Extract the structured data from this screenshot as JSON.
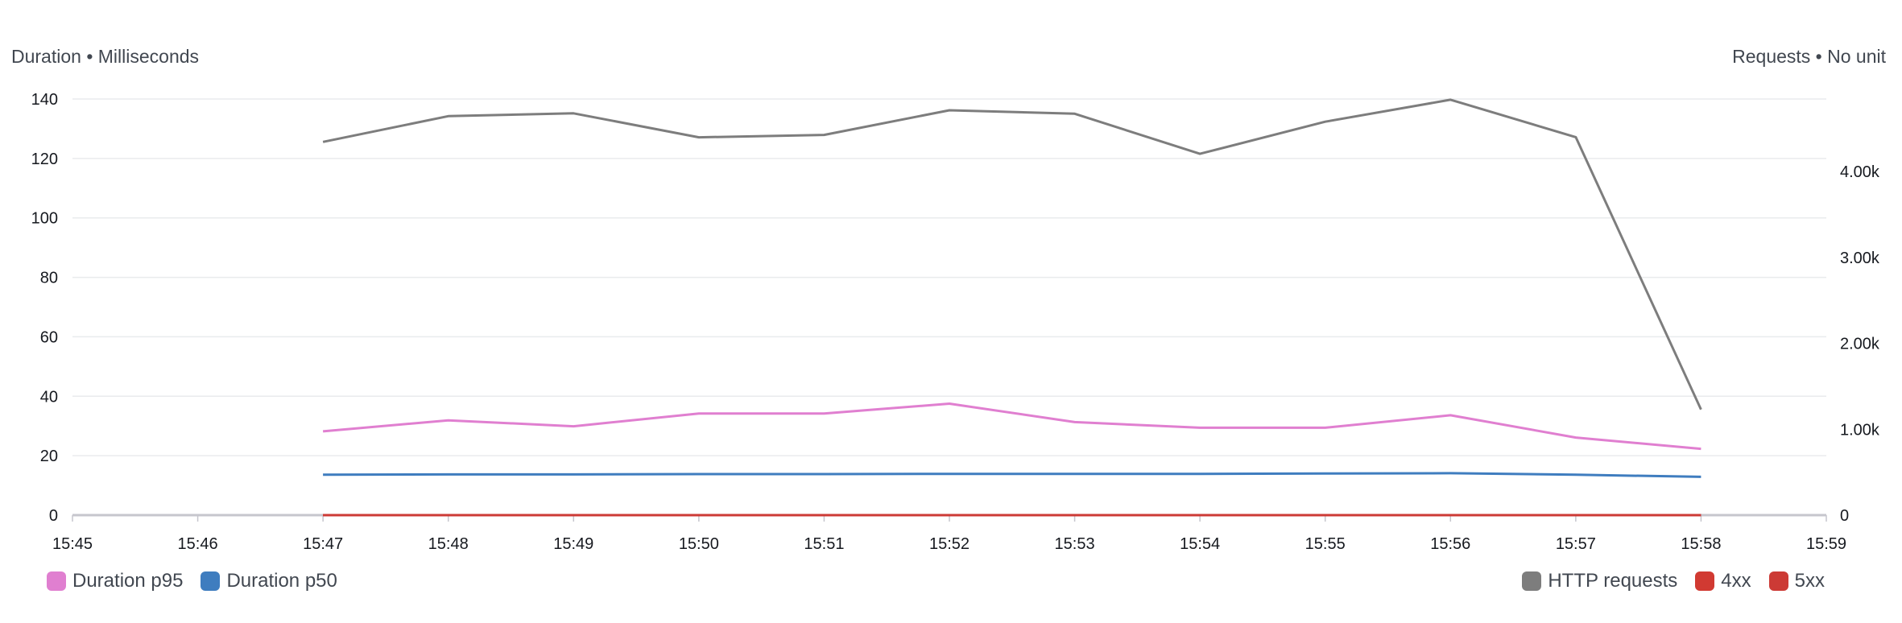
{
  "chart_data": {
    "type": "line",
    "left_axis_title": "Duration • Milliseconds",
    "right_axis_title": "Requests • No unit",
    "x_ticks": [
      "15:45",
      "15:46",
      "15:47",
      "15:48",
      "15:49",
      "15:50",
      "15:51",
      "15:52",
      "15:53",
      "15:54",
      "15:55",
      "15:56",
      "15:57",
      "15:58",
      "15:59"
    ],
    "y_left": {
      "range": [
        0,
        140
      ],
      "ticks": [
        0,
        20,
        40,
        60,
        80,
        100,
        120,
        140
      ],
      "tick_labels": [
        "0",
        "20",
        "40",
        "60",
        "80",
        "100",
        "120",
        "140"
      ]
    },
    "y_right": {
      "range": [
        0,
        4844
      ],
      "ticks": [
        0,
        1000,
        2000,
        3000,
        4000
      ],
      "tick_labels": [
        "0",
        "1.00k",
        "2.00k",
        "3.00k",
        "4.00k"
      ]
    },
    "grid": true,
    "x": [
      "15:47",
      "15:48",
      "15:49",
      "15:50",
      "15:51",
      "15:52",
      "15:53",
      "15:54",
      "15:55",
      "15:56",
      "15:57",
      "15:58"
    ],
    "series": [
      {
        "name": "Duration p95",
        "axis": "left",
        "color": "#e07fd0",
        "values": [
          28.2,
          31.9,
          29.9,
          34.2,
          34.2,
          37.5,
          31.3,
          29.4,
          29.4,
          33.6,
          26.1,
          22.3
        ]
      },
      {
        "name": "Duration p50",
        "axis": "left",
        "color": "#3f7dbf",
        "values": [
          13.6,
          13.7,
          13.7,
          13.8,
          13.8,
          13.9,
          13.9,
          13.9,
          14.0,
          14.1,
          13.6,
          12.9
        ]
      },
      {
        "name": "HTTP requests",
        "axis": "right",
        "color": "#7d7d7d",
        "values": [
          4345,
          4644,
          4677,
          4398,
          4426,
          4713,
          4673,
          4206,
          4580,
          4836,
          4400,
          1230
        ]
      },
      {
        "name": "4xx",
        "axis": "right",
        "color": "#d13a32",
        "values": [
          0,
          0,
          0,
          0,
          0,
          0,
          0,
          0,
          0,
          0,
          0,
          0
        ]
      },
      {
        "name": "5xx",
        "axis": "right",
        "color": "#cc3a35",
        "values": [
          0,
          0,
          0,
          0,
          0,
          0,
          0,
          0,
          0,
          0,
          0,
          0
        ]
      }
    ],
    "legend_placement": "bottom"
  }
}
